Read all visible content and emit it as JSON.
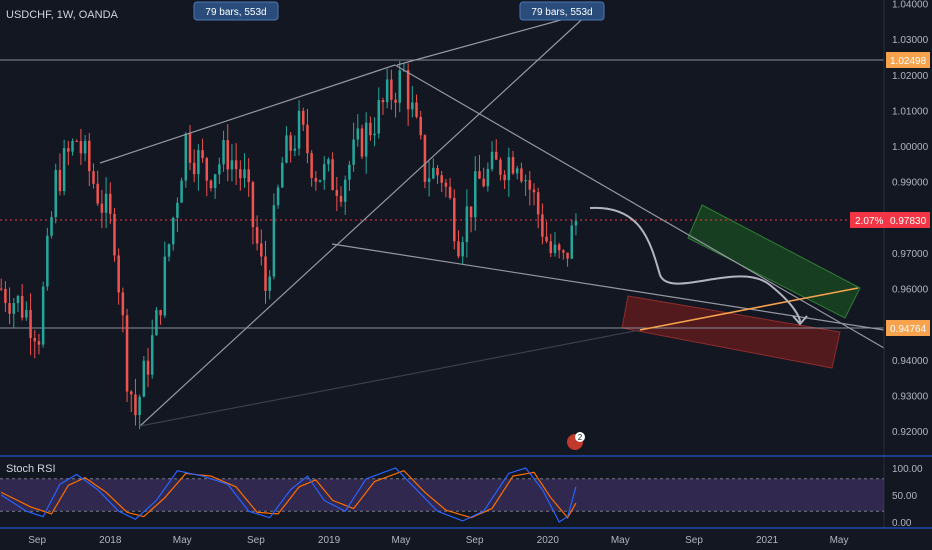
{
  "header": {
    "symbol_label": "USDCHF, 1W, OANDA"
  },
  "colors": {
    "background": "#131722",
    "up_candle": "#26a69a",
    "down_candle": "#ef5350",
    "trendline": "#9598a1",
    "current_price": "#f23645",
    "level_tag": "#f7a24d",
    "stoch_k": "#2962ff",
    "stoch_d": "#ff6d00",
    "rsi_band": "#7e57c2",
    "long_zone": "#1b5e20",
    "short_zone": "#7f1d1d",
    "projection": "#b2b5be",
    "measure_tag": "#2a4c7a"
  },
  "annotations": {
    "measure_labels": [
      "79 bars, 553d",
      "79 bars, 553d"
    ],
    "current_change_pct": "2.07%",
    "current_price": "0.97830",
    "top_level": "1.02498",
    "bottom_level": "0.94764",
    "event_badge_count": "2"
  },
  "indicator": {
    "name": "Stoch RSI",
    "levels": [
      "100.00",
      "50.00",
      "0.00"
    ]
  },
  "chart_data": {
    "type": "candlestick",
    "title": "USDCHF, 1W, OANDA",
    "y_axis": {
      "range": [
        0.913,
        1.041
      ],
      "ticks": [
        "1.04000",
        "1.03000",
        "1.02000",
        "1.01000",
        "1.00000",
        "0.99000",
        "0.98000",
        "0.97000",
        "0.96000",
        "0.95000",
        "0.94000",
        "0.93000",
        "0.92000"
      ],
      "tick_values": [
        1.04,
        1.03,
        1.02,
        1.01,
        1.0,
        0.99,
        0.98,
        0.97,
        0.96,
        0.95,
        0.94,
        0.93,
        0.92
      ]
    },
    "x_axis": {
      "ticks": [
        "Sep",
        "2018",
        "May",
        "Sep",
        "2019",
        "May",
        "Sep",
        "2020",
        "May",
        "Sep",
        "2021",
        "May"
      ],
      "tick_dates": [
        "2017-09-01",
        "2018-01-01",
        "2018-05-01",
        "2018-09-01",
        "2019-01-01",
        "2019-05-01",
        "2019-09-01",
        "2020-01-01",
        "2020-05-01",
        "2020-09-01",
        "2021-01-01",
        "2021-05-01"
      ],
      "range": [
        "2017-07-01",
        "2021-07-15"
      ]
    },
    "anchors": [
      [
        "2017-07-03",
        0.96
      ],
      [
        "2017-08-07",
        0.955
      ],
      [
        "2017-09-04",
        0.948
      ],
      [
        "2017-10-02",
        0.99
      ],
      [
        "2017-11-06",
        1.002
      ],
      [
        "2017-12-04",
        0.99
      ],
      [
        "2018-01-08",
        0.975
      ],
      [
        "2018-01-29",
        0.937
      ],
      [
        "2018-02-12",
        0.925
      ],
      [
        "2018-03-19",
        0.95
      ],
      [
        "2018-04-16",
        0.98
      ],
      [
        "2018-05-07",
        1.002
      ],
      [
        "2018-06-11",
        0.992
      ],
      [
        "2018-07-16",
        0.998
      ],
      [
        "2018-08-13",
        0.99
      ],
      [
        "2018-09-17",
        0.96
      ],
      [
        "2018-10-15",
        0.995
      ],
      [
        "2018-11-12",
        1.005
      ],
      [
        "2018-12-10",
        0.993
      ],
      [
        "2019-01-21",
        0.99
      ],
      [
        "2019-02-25",
        1.002
      ],
      [
        "2019-04-15",
        1.015
      ],
      [
        "2019-05-06",
        1.02
      ],
      [
        "2019-06-10",
        0.993
      ],
      [
        "2019-07-08",
        0.992
      ],
      [
        "2019-08-05",
        0.975
      ],
      [
        "2019-09-09",
        0.99
      ],
      [
        "2019-10-14",
        0.995
      ],
      [
        "2019-11-11",
        0.998
      ],
      [
        "2019-12-09",
        0.985
      ],
      [
        "2020-01-06",
        0.97
      ],
      [
        "2020-01-27",
        0.967
      ],
      [
        "2020-02-17",
        0.979
      ]
    ],
    "stoch_rsi": {
      "range": [
        0,
        100
      ],
      "k_anchors": [
        [
          "2017-07-03",
          50
        ],
        [
          "2017-08-14",
          20
        ],
        [
          "2017-09-11",
          10
        ],
        [
          "2017-10-09",
          70
        ],
        [
          "2017-11-06",
          88
        ],
        [
          "2017-12-11",
          60
        ],
        [
          "2018-01-15",
          20
        ],
        [
          "2018-02-12",
          5
        ],
        [
          "2018-03-19",
          40
        ],
        [
          "2018-04-23",
          95
        ],
        [
          "2018-06-04",
          85
        ],
        [
          "2018-07-16",
          70
        ],
        [
          "2018-08-20",
          20
        ],
        [
          "2018-09-24",
          8
        ],
        [
          "2018-10-29",
          60
        ],
        [
          "2018-11-26",
          85
        ],
        [
          "2018-12-24",
          40
        ],
        [
          "2019-01-28",
          20
        ],
        [
          "2019-03-04",
          80
        ],
        [
          "2019-04-22",
          100
        ],
        [
          "2019-05-27",
          60
        ],
        [
          "2019-07-01",
          20
        ],
        [
          "2019-08-12",
          2
        ],
        [
          "2019-09-16",
          20
        ],
        [
          "2019-10-28",
          90
        ],
        [
          "2019-11-25",
          100
        ],
        [
          "2019-12-23",
          60
        ],
        [
          "2020-01-20",
          0
        ],
        [
          "2020-02-03",
          10
        ],
        [
          "2020-02-17",
          65
        ]
      ],
      "d_anchors": [
        [
          "2017-07-03",
          55
        ],
        [
          "2017-08-21",
          28
        ],
        [
          "2017-09-25",
          15
        ],
        [
          "2017-10-23",
          68
        ],
        [
          "2017-11-20",
          82
        ],
        [
          "2017-12-25",
          55
        ],
        [
          "2018-01-29",
          18
        ],
        [
          "2018-02-26",
          10
        ],
        [
          "2018-04-02",
          45
        ],
        [
          "2018-05-07",
          90
        ],
        [
          "2018-06-18",
          85
        ],
        [
          "2018-07-30",
          65
        ],
        [
          "2018-09-03",
          18
        ],
        [
          "2018-10-08",
          15
        ],
        [
          "2018-11-12",
          65
        ],
        [
          "2018-12-10",
          78
        ],
        [
          "2019-01-07",
          40
        ],
        [
          "2019-02-11",
          25
        ],
        [
          "2019-03-18",
          75
        ],
        [
          "2019-05-06",
          95
        ],
        [
          "2019-06-10",
          55
        ],
        [
          "2019-07-15",
          22
        ],
        [
          "2019-08-26",
          8
        ],
        [
          "2019-09-30",
          25
        ],
        [
          "2019-11-04",
          85
        ],
        [
          "2019-12-09",
          92
        ],
        [
          "2020-01-06",
          45
        ],
        [
          "2020-02-03",
          8
        ],
        [
          "2020-02-17",
          35
        ]
      ]
    }
  }
}
